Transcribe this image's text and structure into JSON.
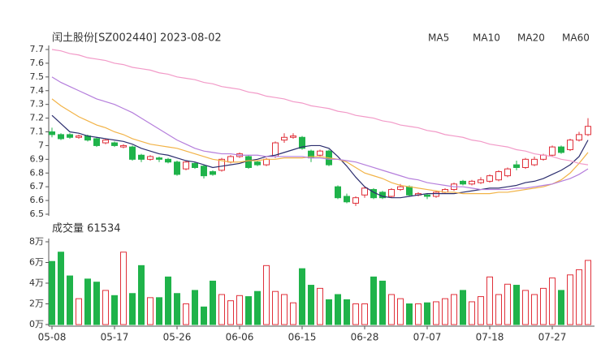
{
  "chart_data": [
    {
      "type": "candlestick",
      "title": "闰土股份[SZ002440] 2023-08-02",
      "up_color": "#e0303a",
      "down_color": "#1fb34a",
      "open": [
        7.1,
        7.08,
        7.08,
        7.06,
        7.07,
        7.05,
        7.02,
        7.02,
        6.99,
        6.99,
        6.93,
        6.9,
        6.91,
        6.9,
        6.88,
        6.83,
        6.87,
        6.85,
        6.81,
        6.82,
        6.88,
        6.92,
        6.92,
        6.88,
        6.86,
        6.92,
        7.04,
        7.06,
        7.06,
        6.96,
        6.93,
        6.96,
        6.7,
        6.63,
        6.58,
        6.64,
        6.68,
        6.66,
        6.63,
        6.68,
        6.7,
        6.64,
        6.64,
        6.63,
        6.66,
        6.68,
        6.74,
        6.72,
        6.73,
        6.74,
        6.75,
        6.78,
        6.86,
        6.84,
        6.86,
        6.9,
        6.93,
        6.99,
        6.97,
        7.04,
        7.08
      ],
      "close": [
        7.08,
        7.05,
        7.06,
        7.07,
        7.04,
        7.0,
        7.04,
        7.0,
        7.0,
        6.9,
        6.9,
        6.92,
        6.9,
        6.88,
        6.79,
        6.88,
        6.84,
        6.78,
        6.79,
        6.9,
        6.92,
        6.94,
        6.84,
        6.86,
        6.9,
        7.02,
        7.06,
        7.07,
        6.98,
        6.91,
        6.96,
        6.86,
        6.62,
        6.59,
        6.62,
        6.69,
        6.62,
        6.62,
        6.68,
        6.7,
        6.64,
        6.65,
        6.63,
        6.66,
        6.68,
        6.72,
        6.72,
        6.74,
        6.75,
        6.78,
        6.81,
        6.83,
        6.84,
        6.9,
        6.9,
        6.93,
        6.99,
        6.95,
        7.04,
        7.08,
        7.14
      ],
      "high": [
        7.13,
        7.09,
        7.09,
        7.08,
        7.08,
        7.06,
        7.05,
        7.03,
        7.01,
        7.0,
        6.94,
        6.93,
        6.92,
        6.91,
        6.89,
        6.89,
        6.88,
        6.86,
        6.82,
        6.91,
        6.93,
        6.95,
        6.93,
        6.89,
        6.91,
        7.03,
        7.09,
        7.09,
        7.07,
        6.97,
        6.97,
        6.97,
        6.71,
        6.65,
        6.63,
        6.7,
        6.69,
        6.67,
        6.69,
        6.72,
        6.71,
        6.66,
        6.65,
        6.67,
        6.69,
        6.73,
        6.75,
        6.75,
        6.77,
        6.79,
        6.82,
        6.84,
        6.89,
        6.91,
        6.92,
        6.94,
        7.0,
        7.0,
        7.05,
        7.1,
        7.2
      ],
      "low": [
        7.06,
        7.04,
        7.05,
        7.05,
        7.03,
        6.99,
        7.01,
        6.99,
        6.98,
        6.89,
        6.88,
        6.89,
        6.88,
        6.87,
        6.78,
        6.82,
        6.83,
        6.76,
        6.78,
        6.81,
        6.87,
        6.91,
        6.83,
        6.85,
        6.85,
        6.91,
        7.02,
        7.05,
        6.97,
        6.88,
        6.92,
        6.85,
        6.61,
        6.58,
        6.56,
        6.62,
        6.61,
        6.61,
        6.62,
        6.67,
        6.63,
        6.63,
        6.61,
        6.62,
        6.65,
        6.67,
        6.71,
        6.71,
        6.72,
        6.73,
        6.74,
        6.77,
        6.82,
        6.83,
        6.85,
        6.89,
        6.92,
        6.94,
        6.96,
        7.03,
        7.07
      ],
      "series": [
        {
          "name": "MA5",
          "color": "#2b2d6e",
          "values": [
            7.22,
            7.16,
            7.1,
            7.09,
            7.07,
            7.06,
            7.05,
            7.04,
            7.03,
            7.01,
            6.98,
            6.96,
            6.94,
            6.93,
            6.91,
            6.89,
            6.88,
            6.86,
            6.84,
            6.85,
            6.86,
            6.87,
            6.89,
            6.9,
            6.92,
            6.93,
            6.95,
            6.97,
            6.99,
            7.0,
            7.0,
            6.98,
            6.92,
            6.85,
            6.77,
            6.7,
            6.66,
            6.63,
            6.62,
            6.62,
            6.63,
            6.64,
            6.65,
            6.65,
            6.65,
            6.65,
            6.66,
            6.67,
            6.68,
            6.69,
            6.69,
            6.7,
            6.71,
            6.73,
            6.74,
            6.76,
            6.79,
            6.82,
            6.86,
            6.92,
            7.04
          ]
        },
        {
          "name": "MA10",
          "color": "#f2b347",
          "values": [
            7.34,
            7.29,
            7.25,
            7.21,
            7.18,
            7.15,
            7.13,
            7.1,
            7.08,
            7.05,
            7.03,
            7.01,
            7.0,
            6.99,
            6.98,
            6.96,
            6.94,
            6.92,
            6.9,
            6.89,
            6.88,
            6.88,
            6.89,
            6.89,
            6.9,
            6.9,
            6.91,
            6.91,
            6.91,
            6.92,
            6.92,
            6.91,
            6.9,
            6.88,
            6.84,
            6.8,
            6.78,
            6.76,
            6.73,
            6.71,
            6.7,
            6.69,
            6.68,
            6.67,
            6.66,
            6.66,
            6.65,
            6.65,
            6.65,
            6.65,
            6.66,
            6.66,
            6.67,
            6.68,
            6.69,
            6.7,
            6.72,
            6.75,
            6.8,
            6.87,
            6.95
          ]
        },
        {
          "name": "MA20",
          "color": "#b57edc",
          "values": [
            7.5,
            7.46,
            7.43,
            7.4,
            7.37,
            7.34,
            7.32,
            7.3,
            7.27,
            7.24,
            7.2,
            7.16,
            7.12,
            7.08,
            7.04,
            7.01,
            6.98,
            6.96,
            6.95,
            6.94,
            6.94,
            6.93,
            6.93,
            6.93,
            6.92,
            6.92,
            6.92,
            6.92,
            6.92,
            6.91,
            6.91,
            6.9,
            6.9,
            6.89,
            6.88,
            6.86,
            6.84,
            6.82,
            6.8,
            6.78,
            6.76,
            6.75,
            6.73,
            6.72,
            6.71,
            6.7,
            6.7,
            6.69,
            6.68,
            6.68,
            6.68,
            6.68,
            6.69,
            6.69,
            6.7,
            6.71,
            6.72,
            6.74,
            6.76,
            6.79,
            6.83
          ]
        },
        {
          "name": "MA60",
          "color": "#f29ac8",
          "values": [
            7.7,
            7.69,
            7.67,
            7.66,
            7.64,
            7.63,
            7.62,
            7.6,
            7.59,
            7.57,
            7.56,
            7.55,
            7.53,
            7.52,
            7.5,
            7.49,
            7.48,
            7.46,
            7.45,
            7.43,
            7.42,
            7.41,
            7.39,
            7.38,
            7.36,
            7.35,
            7.34,
            7.32,
            7.31,
            7.29,
            7.28,
            7.27,
            7.25,
            7.24,
            7.22,
            7.21,
            7.2,
            7.18,
            7.17,
            7.15,
            7.14,
            7.13,
            7.11,
            7.1,
            7.08,
            7.07,
            7.06,
            7.04,
            7.03,
            7.01,
            7.0,
            6.99,
            6.97,
            6.96,
            6.94,
            6.93,
            6.92,
            6.9,
            6.89,
            6.87,
            6.86
          ]
        }
      ],
      "ylim": [
        6.5,
        7.7
      ],
      "yticks": [
        7.7,
        7.6,
        7.5,
        7.4,
        7.3,
        7.2,
        7.1,
        7,
        6.9,
        6.8,
        6.7,
        6.6,
        6.5
      ]
    },
    {
      "type": "bar",
      "title": "成交量 61534",
      "categories": [
        "05-08",
        null,
        null,
        null,
        null,
        null,
        null,
        "05-17",
        null,
        null,
        null,
        null,
        null,
        null,
        "05-26",
        null,
        null,
        null,
        null,
        null,
        null,
        "06-06",
        null,
        null,
        null,
        null,
        null,
        null,
        "06-15",
        null,
        null,
        null,
        null,
        null,
        null,
        "06-28",
        null,
        null,
        null,
        null,
        null,
        null,
        "07-07",
        null,
        null,
        null,
        null,
        null,
        null,
        "07-18",
        null,
        null,
        null,
        null,
        null,
        null,
        "07-27",
        null,
        null,
        null,
        null
      ],
      "values": [
        6.1,
        7.0,
        4.7,
        2.5,
        4.4,
        4.1,
        3.3,
        2.8,
        7.0,
        3.0,
        5.7,
        2.6,
        2.6,
        4.6,
        3.0,
        2.0,
        3.3,
        1.7,
        4.2,
        2.9,
        2.3,
        2.8,
        2.7,
        3.2,
        5.7,
        3.2,
        2.9,
        2.1,
        5.4,
        3.8,
        3.5,
        2.4,
        2.9,
        2.4,
        2.0,
        2.0,
        4.6,
        4.2,
        2.9,
        2.5,
        2.0,
        2.0,
        2.1,
        2.2,
        2.5,
        2.9,
        3.3,
        2.2,
        2.7,
        4.6,
        2.9,
        3.9,
        3.8,
        3.3,
        2.9,
        3.5,
        4.5,
        3.3,
        4.8,
        5.3,
        6.2
      ],
      "ylim": [
        0,
        8
      ],
      "yticks": [
        {
          "value": 8,
          "label": "8万"
        },
        {
          "value": 6,
          "label": "6万"
        },
        {
          "value": 4,
          "label": "4万"
        },
        {
          "value": 2,
          "label": "2万"
        },
        {
          "value": 0,
          "label": "0万"
        }
      ]
    }
  ]
}
